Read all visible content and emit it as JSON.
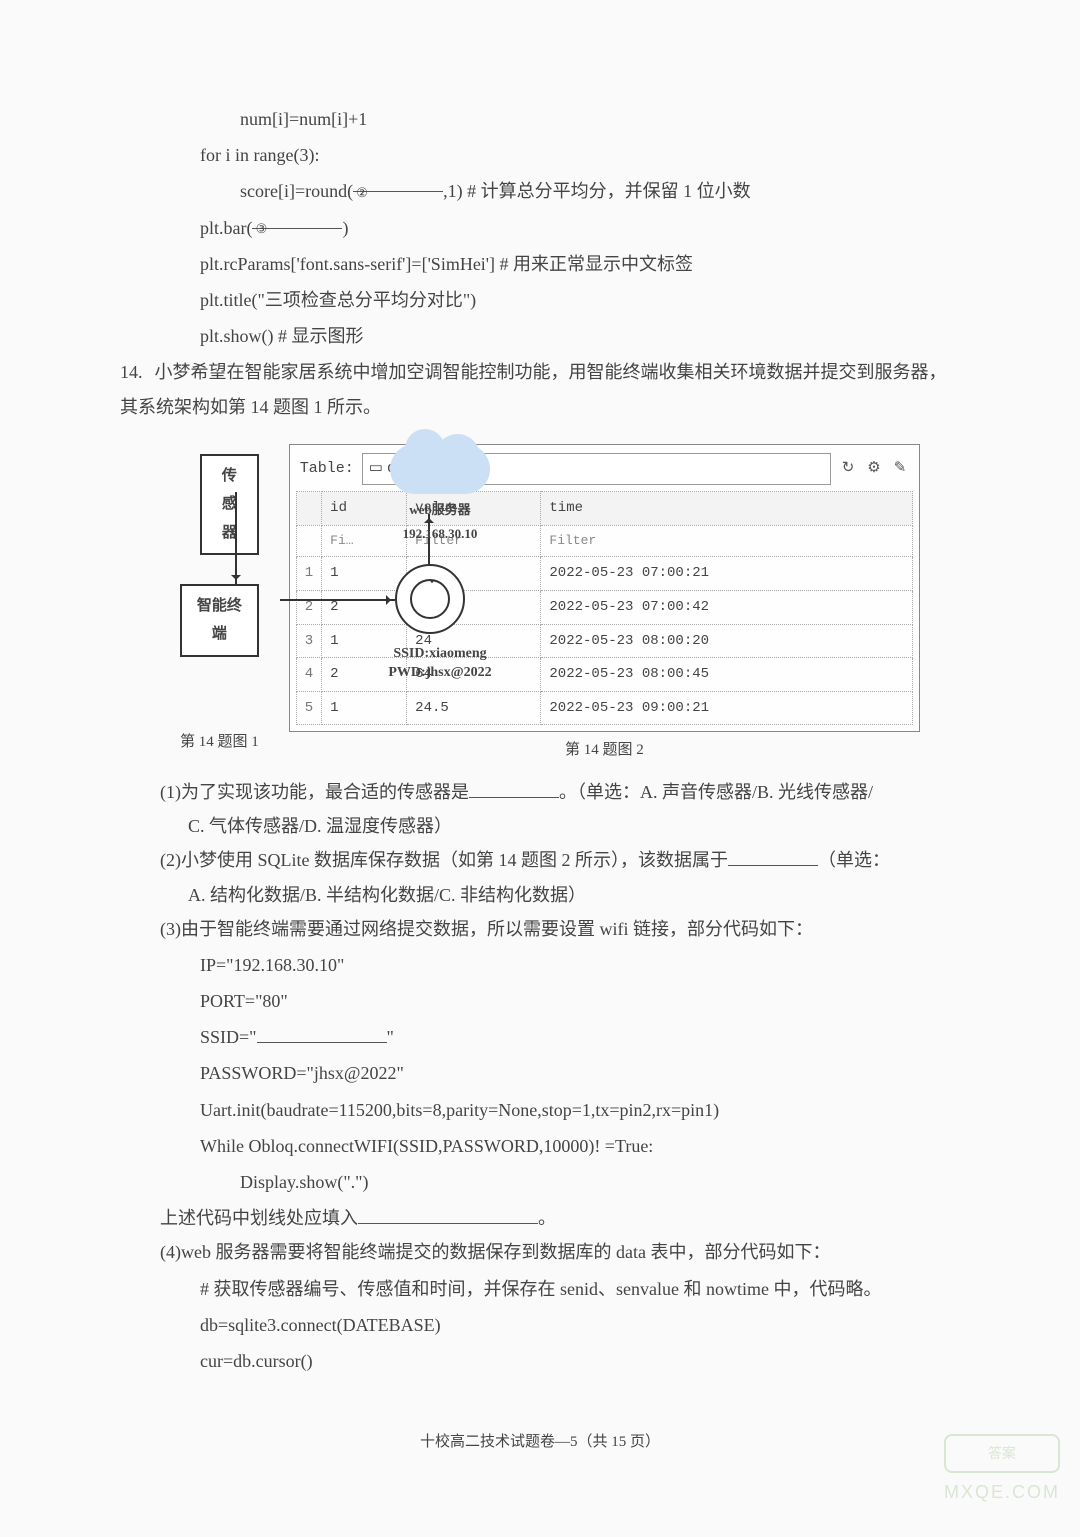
{
  "code_top": {
    "l1": "num[i]=num[i]+1",
    "l2": "for i in range(3):",
    "l3_a": "score[i]=round(",
    "blank2": "②",
    "l3_b": ",1)   # 计算总分平均分，并保留 1 位小数",
    "l4_a": "plt.bar(",
    "blank3": "③",
    "l4_b": ")",
    "l5": "plt.rcParams['font.sans-serif']=['SimHei']  # 用来正常显示中文标签",
    "l6": "plt.title(\"三项检查总分平均分对比\")",
    "l7": "plt.show()      # 显示图形"
  },
  "q14": {
    "num": "14.",
    "text": "小梦希望在智能家居系统中增加空调智能控制功能，用智能终端收集相关环境数据并提交到服务器，其系统架构如第 14 题图 1 所示。",
    "fig1_caption": "第 14 题图 1",
    "fig2_caption": "第 14 题图 2",
    "diagram": {
      "sensor": "传感器",
      "terminal": "智能终端",
      "web_label": "web服务器",
      "ip": "192.168.30.10",
      "ssid": "SSID:xiaomeng",
      "pwd": "PWD:jhsx@2022"
    },
    "table": {
      "label": "Table:",
      "name": "data",
      "folder_icon": "▭",
      "refresh_icon": "↻",
      "tool_icon1": "⚙",
      "tool_icon2": "✎",
      "columns": [
        "",
        "id",
        "value",
        "time"
      ],
      "filters": [
        "Fi…",
        "Filter",
        "Filter"
      ],
      "rows": [
        [
          "1",
          "1",
          "24",
          "2022-05-23 07:00:21"
        ],
        [
          "2",
          "2",
          "65",
          "2022-05-23 07:00:42"
        ],
        [
          "3",
          "1",
          "24",
          "2022-05-23 08:00:20"
        ],
        [
          "4",
          "2",
          "64",
          "2022-05-23 08:00:45"
        ],
        [
          "5",
          "1",
          "24.5",
          "2022-05-23 09:00:21"
        ]
      ]
    },
    "sub1": {
      "text_a": "(1)为了实现该功能，最合适的传感器是",
      "text_b": "。（单选：A. 声音传感器/B. 光线传感器/",
      "text_c": "C. 气体传感器/D. 温湿度传感器）"
    },
    "sub2": {
      "text_a": "(2)小梦使用 SQLite 数据库保存数据（如第 14 题图 2 所示），该数据属于",
      "text_b": "（单选：",
      "text_c": "A. 结构化数据/B. 半结构化数据/C. 非结构化数据）"
    },
    "sub3": {
      "text": "(3)由于智能终端需要通过网络提交数据，所以需要设置 wifi 链接，部分代码如下：",
      "code": {
        "l1": "IP=\"192.168.30.10\"",
        "l2": "PORT=\"80\"",
        "l3_a": "SSID=\"",
        "l3_b": "\"",
        "l4": "PASSWORD=\"jhsx@2022\"",
        "l5": "Uart.init(baudrate=115200,bits=8,parity=None,stop=1,tx=pin2,rx=pin1)",
        "l6": "While Obloq.connectWIFI(SSID,PASSWORD,10000)! =True:",
        "l7": "Display.show(\".\")"
      },
      "tail_a": "上述代码中划线处应填入",
      "tail_b": "。"
    },
    "sub4": {
      "text": "(4)web 服务器需要将智能终端提交的数据保存到数据库的 data 表中，部分代码如下：",
      "code": {
        "l1": "# 获取传感器编号、传感值和时间，并保存在 senid、senvalue 和 nowtime 中，代码略。",
        "l2": "db=sqlite3.connect(DATEBASE)",
        "l3": "cur=db.cursor()"
      }
    }
  },
  "footer": "十校高二技术试题卷—5（共 15 页）",
  "watermark": {
    "box": "答案",
    "text": "MXQE.COM"
  }
}
